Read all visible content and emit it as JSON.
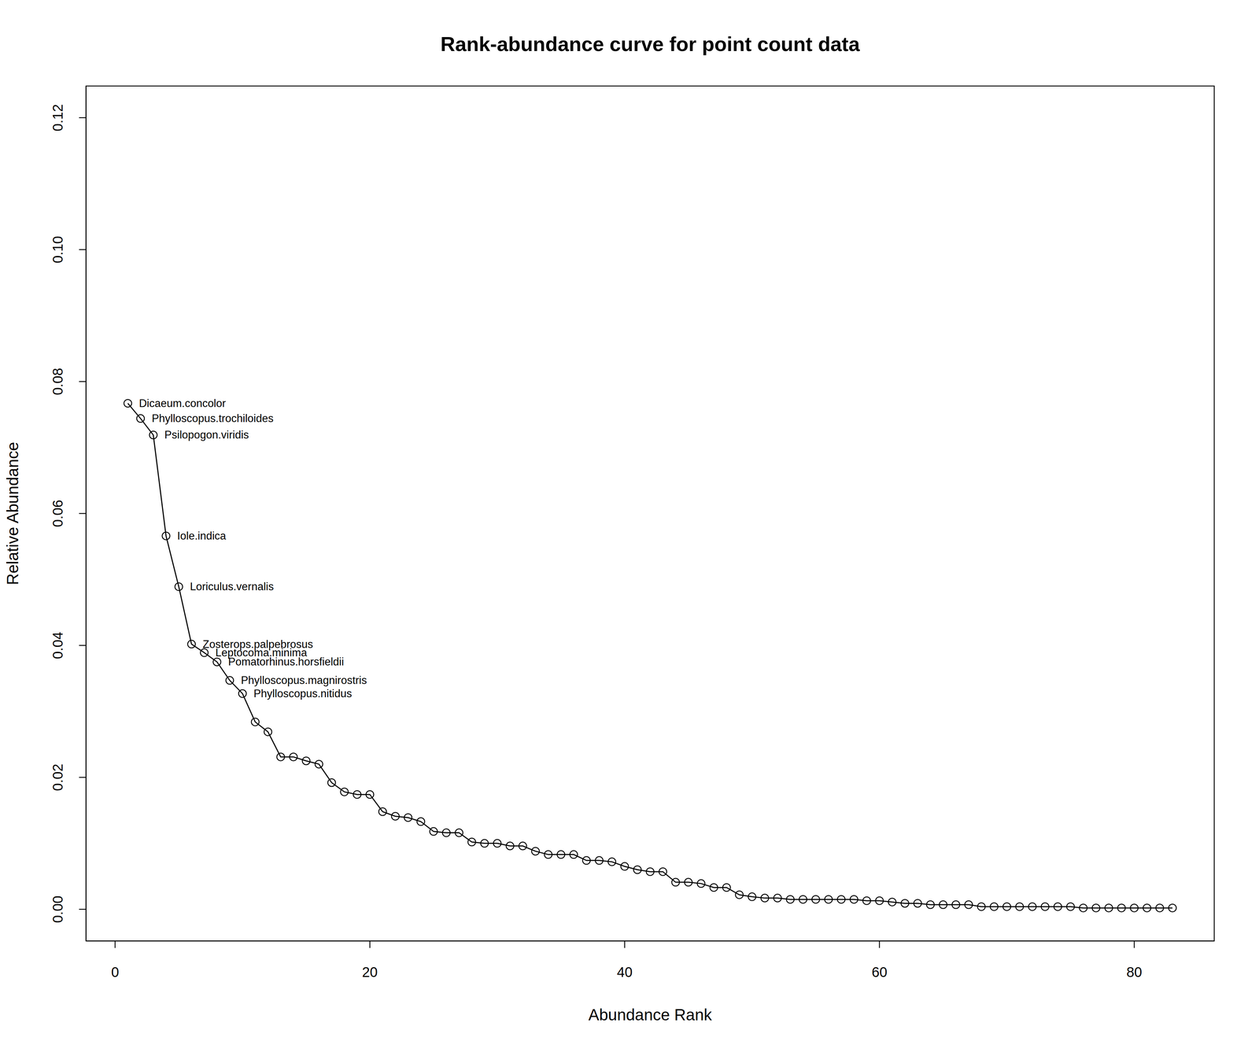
{
  "chart_data": {
    "type": "line",
    "title": "Rank-abundance curve for point count data",
    "x_label": "Abundance Rank",
    "y_label": "Relative Abundance",
    "color": "#000000",
    "marker": "circle",
    "line_style": "solid",
    "grid": false,
    "x": [
      1,
      2,
      3,
      4,
      5,
      6,
      7,
      8,
      9,
      10,
      11,
      12,
      13,
      14,
      15,
      16,
      17,
      18,
      19,
      20,
      21,
      22,
      23,
      24,
      25,
      26,
      27,
      28,
      29,
      30,
      31,
      32,
      33,
      34,
      35,
      36,
      37,
      38,
      39,
      40,
      41,
      42,
      43,
      44,
      45,
      46,
      47,
      48,
      49,
      50,
      51,
      52,
      53,
      54,
      55,
      56,
      57,
      58,
      59,
      60,
      61,
      62,
      63,
      64,
      65,
      66,
      67,
      68,
      69,
      70,
      71,
      72,
      73,
      74,
      75,
      76,
      77,
      78,
      79,
      80,
      81,
      82,
      83
    ],
    "values": [
      0.0767,
      0.0744,
      0.0719,
      0.0566,
      0.0489,
      0.0402,
      0.0389,
      0.0375,
      0.0347,
      0.0327,
      0.0284,
      0.0269,
      0.0231,
      0.0231,
      0.0225,
      0.022,
      0.0192,
      0.0178,
      0.0174,
      0.0174,
      0.0148,
      0.0141,
      0.0139,
      0.0133,
      0.0118,
      0.0116,
      0.0116,
      0.0102,
      0.01,
      0.01,
      0.0096,
      0.0096,
      0.0088,
      0.0083,
      0.0083,
      0.0083,
      0.0074,
      0.0074,
      0.0072,
      0.0065,
      0.006,
      0.0057,
      0.0057,
      0.0041,
      0.0041,
      0.0039,
      0.0033,
      0.0033,
      0.0022,
      0.0019,
      0.0017,
      0.0017,
      0.0015,
      0.0015,
      0.0015,
      0.0015,
      0.0015,
      0.0015,
      0.0013,
      0.0013,
      0.0011,
      0.0009,
      0.0009,
      0.0007,
      0.0007,
      0.0007,
      0.0007,
      0.0004,
      0.0004,
      0.0004,
      0.0004,
      0.0004,
      0.0004,
      0.0004,
      0.0004,
      0.0002,
      0.0002,
      0.0002,
      0.0002,
      0.0002,
      0.0002,
      0.0002,
      0.0002
    ],
    "point_labels": [
      "Dicaeum.concolor",
      "Phylloscopus.trochiloides",
      "Psilopogon.viridis",
      "Iole.indica",
      "Loriculus.vernalis",
      "Zosterops.palpebrosus",
      "Leptocoma.minima",
      "Pomatorhinus.horsfieldii",
      "Phylloscopus.magnirostris",
      "Phylloscopus.nitidus",
      null,
      null,
      null,
      null,
      null,
      null,
      null,
      null,
      null,
      null,
      null,
      null,
      null,
      null,
      null,
      null,
      null,
      null,
      null,
      null,
      null,
      null,
      null,
      null,
      null,
      null,
      null,
      null,
      null,
      null,
      null,
      null,
      null,
      null,
      null,
      null,
      null,
      null,
      null,
      null,
      null,
      null,
      null,
      null,
      null,
      null,
      null,
      null,
      null,
      null,
      null,
      null,
      null,
      null,
      null,
      null,
      null,
      null,
      null,
      null,
      null,
      null,
      null,
      null,
      null,
      null,
      null,
      null,
      null,
      null,
      null,
      null,
      null
    ],
    "xlim": [
      -2.28,
      86.28
    ],
    "xticks": [
      0,
      20,
      40,
      60,
      80
    ],
    "ylim": [
      -0.0048,
      0.1248
    ],
    "yticks": [
      {
        "value": 0,
        "label": "0.00"
      },
      0.02,
      0.04,
      0.06,
      0.08,
      {
        "value": 0.1,
        "label": "0.10"
      },
      0.12
    ]
  }
}
